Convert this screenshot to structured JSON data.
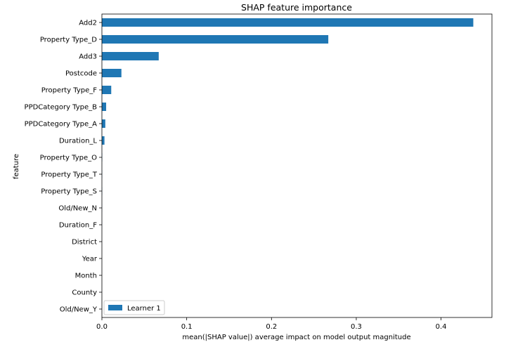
{
  "chart_data": {
    "type": "bar",
    "orientation": "horizontal",
    "title": "SHAP feature importance",
    "xlabel": "mean(|SHAP value|) average impact on model output magnitude",
    "ylabel": "feature",
    "xlim": [
      0,
      0.46
    ],
    "xticks": [
      0,
      0.1,
      0.2,
      0.3,
      0.4
    ],
    "xtick_labels": [
      "0.0",
      "0.1",
      "0.2",
      "0.3",
      "0.4"
    ],
    "grid": false,
    "legend_position": "lower-left",
    "categories": [
      "Add2",
      "Property Type_D",
      "Add3",
      "Postcode",
      "Property Type_F",
      "PPDCategory Type_B",
      "PPDCategory Type_A",
      "Duration_L",
      "Property Type_O",
      "Property Type_T",
      "Property Type_S",
      "Old/New_N",
      "Duration_F",
      "District",
      "Year",
      "Month",
      "County",
      "Old/New_Y"
    ],
    "series": [
      {
        "name": "Learner 1",
        "color": "#1f77b4",
        "values": [
          0.438,
          0.267,
          0.067,
          0.023,
          0.011,
          0.005,
          0.004,
          0.003,
          0.0003,
          0.0002,
          0.0002,
          0.0001,
          0.0001,
          0.0,
          0.0,
          0.0,
          0.0,
          0.0
        ]
      }
    ]
  }
}
